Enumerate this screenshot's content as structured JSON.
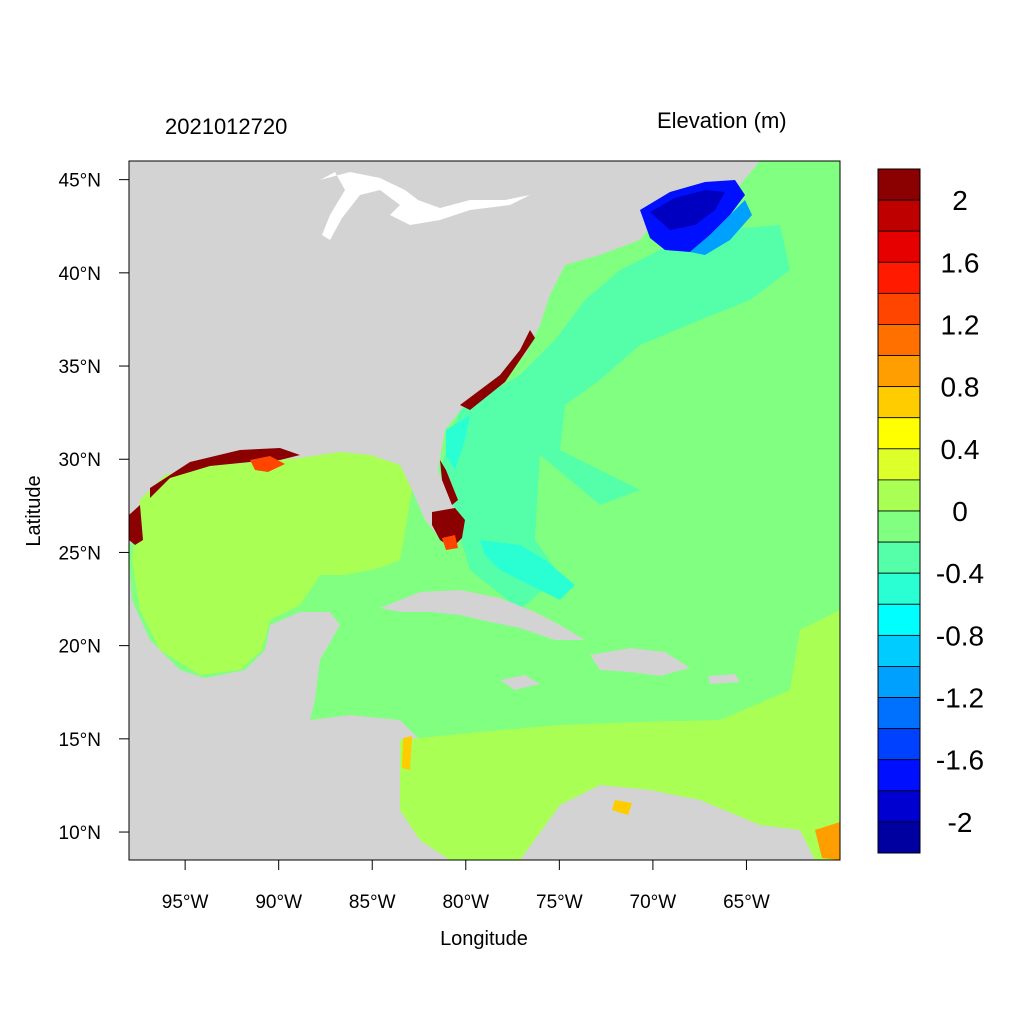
{
  "title_left": "2021012720",
  "title_right": "Elevation (m)",
  "x_axis": {
    "label": "Longitude",
    "range": [
      -98,
      -60
    ],
    "ticks": [
      {
        "value": -95,
        "label": "95°W"
      },
      {
        "value": -90,
        "label": "90°W"
      },
      {
        "value": -85,
        "label": "85°W"
      },
      {
        "value": -80,
        "label": "80°W"
      },
      {
        "value": -75,
        "label": "75°W"
      },
      {
        "value": -70,
        "label": "70°W"
      },
      {
        "value": -65,
        "label": "65°W"
      }
    ]
  },
  "y_axis": {
    "label": "Latitude",
    "range": [
      8.5,
      46
    ],
    "ticks": [
      {
        "value": 45,
        "label": "45°N"
      },
      {
        "value": 40,
        "label": "40°N"
      },
      {
        "value": 35,
        "label": "35°N"
      },
      {
        "value": 30,
        "label": "30°N"
      },
      {
        "value": 25,
        "label": "25°N"
      },
      {
        "value": 20,
        "label": "20°N"
      },
      {
        "value": 15,
        "label": "15°N"
      },
      {
        "value": 10,
        "label": "10°N"
      }
    ]
  },
  "colorbar": {
    "colors_top_to_bottom": [
      "#8b0000",
      "#bf0000",
      "#e60000",
      "#ff1a00",
      "#ff4500",
      "#ff7000",
      "#ff9e00",
      "#ffcc00",
      "#ffff00",
      "#ddff2a",
      "#aaff55",
      "#80ff80",
      "#55ffaa",
      "#2affd4",
      "#00ffff",
      "#00ccff",
      "#00a0ff",
      "#0070ff",
      "#0040ff",
      "#0010ff",
      "#0000d0",
      "#0000a0"
    ],
    "labels": [
      "2",
      "1.6",
      "1.2",
      "0.8",
      "0.4",
      "0",
      "-0.4",
      "-0.8",
      "-1.2",
      "-1.6",
      "-2"
    ]
  },
  "colors": {
    "land": "#d3d3d3",
    "lakes": "#ffffff",
    "gulf_of_mexico": "#aaff55",
    "atlantic": "#80ff80",
    "shelf": "#55ffaa",
    "caribbean_south": "#aaff55",
    "surge_high": "#8b0000",
    "surge_low": "#0010ff"
  }
}
